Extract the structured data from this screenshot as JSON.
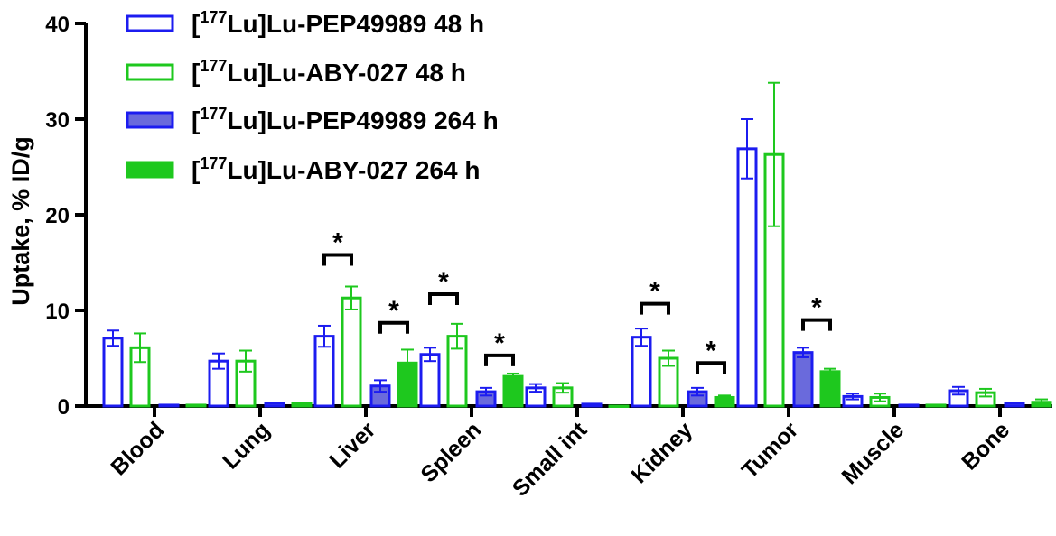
{
  "chart_data": {
    "type": "bar",
    "ylabel": "Uptake, % ID/g",
    "xlabel": "",
    "ylim": [
      0,
      40
    ],
    "yticks": [
      "0",
      "10",
      "20",
      "30",
      "40"
    ],
    "categories": [
      "Blood",
      "Lung",
      "Liver",
      "Spleen",
      "Small int",
      "Kidney",
      "Tumor",
      "Muscle",
      "Bone"
    ],
    "series": [
      {
        "name": "[177Lu]Lu-PEP49989  48 h",
        "label_prefix": "[",
        "label_sup": "177",
        "label_rest": "Lu]Lu-PEP49989  48 h",
        "color": "#1c1cf0",
        "fill": "#ffffff",
        "values": [
          7.1,
          4.7,
          7.3,
          5.4,
          1.9,
          7.2,
          26.9,
          1.0,
          1.6
        ],
        "errors": [
          0.8,
          0.8,
          1.1,
          0.7,
          0.4,
          0.9,
          3.1,
          0.3,
          0.4
        ]
      },
      {
        "name": "[177Lu]Lu-ABY-027 48 h",
        "label_prefix": "[",
        "label_sup": "177",
        "label_rest": "Lu]Lu-ABY-027 48 h",
        "color": "#1ec81e",
        "fill": "#ffffff",
        "values": [
          6.1,
          4.7,
          11.3,
          7.3,
          1.9,
          5.0,
          26.3,
          0.9,
          1.4
        ],
        "errors": [
          1.5,
          1.1,
          1.2,
          1.3,
          0.5,
          0.8,
          7.5,
          0.4,
          0.4
        ]
      },
      {
        "name": "[177Lu]Lu-PEP49989 264 h",
        "label_prefix": "[",
        "label_sup": "177",
        "label_rest": "Lu]Lu-PEP49989 264 h",
        "color": "#1c1cf0",
        "fill": "#6a6adc",
        "values": [
          0.1,
          0.3,
          2.1,
          1.5,
          0.2,
          1.5,
          5.6,
          0.1,
          0.3
        ],
        "errors": [
          0.05,
          0.1,
          0.6,
          0.4,
          0.05,
          0.4,
          0.5,
          0.05,
          0.1
        ]
      },
      {
        "name": "[177Lu]Lu-ABY-027 264 h",
        "label_prefix": "[",
        "label_sup": "177",
        "label_rest": "Lu]Lu-ABY-027 264 h",
        "color": "#1ec81e",
        "fill": "#1ec81e",
        "values": [
          0.1,
          0.3,
          4.5,
          3.1,
          0.0,
          0.9,
          3.6,
          0.1,
          0.4
        ],
        "errors": [
          0.05,
          0.1,
          1.4,
          0.3,
          0.0,
          0.2,
          0.3,
          0.05,
          0.3
        ]
      }
    ],
    "significance": [
      {
        "category": "Liver",
        "between": [
          0,
          1
        ],
        "y": 15.8,
        "label": "*"
      },
      {
        "category": "Liver",
        "between": [
          2,
          3
        ],
        "y": 8.7,
        "label": "*"
      },
      {
        "category": "Spleen",
        "between": [
          0,
          1
        ],
        "y": 11.7,
        "label": "*"
      },
      {
        "category": "Spleen",
        "between": [
          2,
          3
        ],
        "y": 5.3,
        "label": "*"
      },
      {
        "category": "Kidney",
        "between": [
          0,
          1
        ],
        "y": 10.7,
        "label": "*"
      },
      {
        "category": "Kidney",
        "between": [
          2,
          3
        ],
        "y": 4.5,
        "label": "*"
      },
      {
        "category": "Tumor",
        "between": [
          2,
          3
        ],
        "y": 9.0,
        "label": "*"
      }
    ],
    "legend_position": "top-left"
  }
}
